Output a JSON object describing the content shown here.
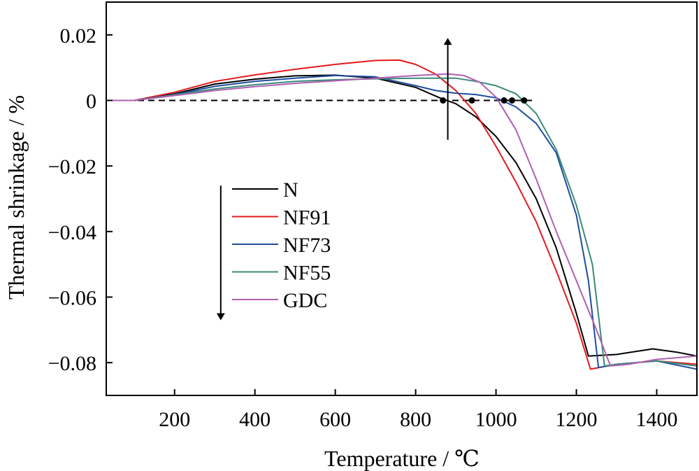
{
  "chart_data": {
    "type": "line",
    "xlabel": "Temperature / ℃",
    "ylabel": "Thermal shrinkage / %",
    "xlim": [
      30,
      1500
    ],
    "ylim": [
      -0.09,
      0.03
    ],
    "xticks": [
      200,
      400,
      600,
      800,
      1000,
      1200,
      1400
    ],
    "xtick_labels": [
      "200",
      "400",
      "600",
      "800",
      "1000",
      "1200",
      "1400"
    ],
    "yticks": [
      0.02,
      0,
      -0.02,
      -0.04,
      -0.06,
      -0.08
    ],
    "ytick_labels": [
      "0.02",
      "0",
      "−0.02",
      "−0.04",
      "−0.06",
      "−0.08"
    ],
    "grid": false,
    "legend_position": "center-left",
    "reference_line": {
      "y": 0,
      "x_range": [
        30,
        1100
      ],
      "style": "dashed"
    },
    "onset_points": [
      {
        "x": 868,
        "y": 0
      },
      {
        "x": 940,
        "y": 0
      },
      {
        "x": 1020,
        "y": 0
      },
      {
        "x": 1040,
        "y": 0
      },
      {
        "x": 1070,
        "y": 0
      }
    ],
    "annotations": [
      {
        "type": "arrow",
        "direction": "up",
        "at_x": 880,
        "from_y": -0.012,
        "to_y": 0.018
      },
      {
        "type": "arrow",
        "direction": "down",
        "at_x": 315,
        "from_y": -0.026,
        "to_y": -0.066
      }
    ],
    "series": [
      {
        "name": "N",
        "color": "#000000",
        "points": [
          [
            30,
            0
          ],
          [
            100,
            0
          ],
          [
            200,
            0.002
          ],
          [
            300,
            0.005
          ],
          [
            400,
            0.0065
          ],
          [
            500,
            0.0075
          ],
          [
            600,
            0.0077
          ],
          [
            700,
            0.0068
          ],
          [
            800,
            0.004
          ],
          [
            860,
            0.0008
          ],
          [
            900,
            -0.001
          ],
          [
            950,
            -0.005
          ],
          [
            1000,
            -0.011
          ],
          [
            1050,
            -0.019
          ],
          [
            1100,
            -0.03
          ],
          [
            1150,
            -0.045
          ],
          [
            1200,
            -0.065
          ],
          [
            1230,
            -0.078
          ],
          [
            1300,
            -0.0775
          ],
          [
            1390,
            -0.0758
          ],
          [
            1450,
            -0.0768
          ],
          [
            1500,
            -0.078
          ]
        ]
      },
      {
        "name": "NF91",
        "color": "#e41a1c",
        "points": [
          [
            30,
            0
          ],
          [
            100,
            0
          ],
          [
            200,
            0.0025
          ],
          [
            300,
            0.0058
          ],
          [
            400,
            0.0078
          ],
          [
            500,
            0.0095
          ],
          [
            600,
            0.011
          ],
          [
            700,
            0.0122
          ],
          [
            760,
            0.0123
          ],
          [
            800,
            0.011
          ],
          [
            850,
            0.008
          ],
          [
            900,
            0.003
          ],
          [
            950,
            -0.004
          ],
          [
            1000,
            -0.014
          ],
          [
            1050,
            -0.025
          ],
          [
            1100,
            -0.037
          ],
          [
            1150,
            -0.052
          ],
          [
            1200,
            -0.068
          ],
          [
            1235,
            -0.082
          ],
          [
            1300,
            -0.0805
          ],
          [
            1400,
            -0.0795
          ],
          [
            1500,
            -0.0805
          ]
        ]
      },
      {
        "name": "NF73",
        "color": "#1f4e9e",
        "points": [
          [
            30,
            0
          ],
          [
            100,
            0
          ],
          [
            200,
            0.0018
          ],
          [
            300,
            0.0043
          ],
          [
            400,
            0.0058
          ],
          [
            500,
            0.0068
          ],
          [
            600,
            0.0076
          ],
          [
            700,
            0.0072
          ],
          [
            800,
            0.0045
          ],
          [
            850,
            0.003
          ],
          [
            900,
            0.0022
          ],
          [
            950,
            0.0018
          ],
          [
            1000,
            0.0008
          ],
          [
            1050,
            -0.002
          ],
          [
            1100,
            -0.007
          ],
          [
            1150,
            -0.016
          ],
          [
            1200,
            -0.035
          ],
          [
            1230,
            -0.055
          ],
          [
            1255,
            -0.0815
          ],
          [
            1300,
            -0.0805
          ],
          [
            1400,
            -0.0795
          ],
          [
            1500,
            -0.082
          ]
        ]
      },
      {
        "name": "NF55",
        "color": "#3a8a7a",
        "points": [
          [
            30,
            0
          ],
          [
            100,
            0
          ],
          [
            200,
            0.0017
          ],
          [
            300,
            0.0035
          ],
          [
            400,
            0.0048
          ],
          [
            500,
            0.0058
          ],
          [
            600,
            0.0063
          ],
          [
            700,
            0.0066
          ],
          [
            800,
            0.0068
          ],
          [
            900,
            0.0068
          ],
          [
            950,
            0.0058
          ],
          [
            1000,
            0.0045
          ],
          [
            1050,
            0.002
          ],
          [
            1100,
            -0.004
          ],
          [
            1150,
            -0.015
          ],
          [
            1200,
            -0.032
          ],
          [
            1240,
            -0.05
          ],
          [
            1270,
            -0.081
          ],
          [
            1300,
            -0.0805
          ],
          [
            1400,
            -0.0795
          ],
          [
            1500,
            -0.081
          ]
        ]
      },
      {
        "name": "GDC",
        "color": "#b05fb0",
        "points": [
          [
            30,
            0
          ],
          [
            100,
            0
          ],
          [
            200,
            0.0015
          ],
          [
            300,
            0.003
          ],
          [
            400,
            0.0042
          ],
          [
            500,
            0.0052
          ],
          [
            600,
            0.006
          ],
          [
            700,
            0.0068
          ],
          [
            800,
            0.0076
          ],
          [
            880,
            0.0081
          ],
          [
            920,
            0.0076
          ],
          [
            960,
            0.0055
          ],
          [
            1000,
            0.001
          ],
          [
            1050,
            -0.009
          ],
          [
            1100,
            -0.024
          ],
          [
            1150,
            -0.04
          ],
          [
            1200,
            -0.055
          ],
          [
            1250,
            -0.07
          ],
          [
            1285,
            -0.081
          ],
          [
            1330,
            -0.0805
          ],
          [
            1400,
            -0.079
          ],
          [
            1500,
            -0.078
          ]
        ]
      }
    ]
  }
}
